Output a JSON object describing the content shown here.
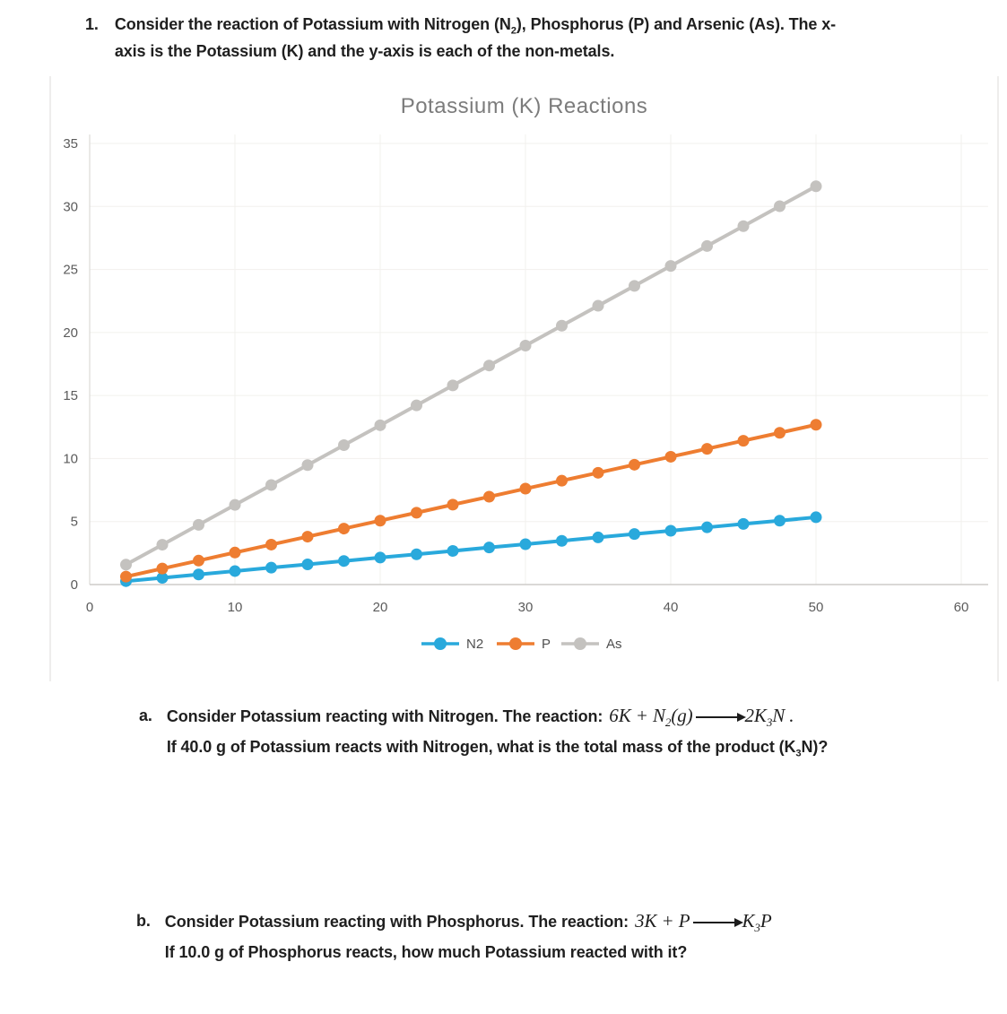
{
  "intro": {
    "number": "1.",
    "text": [
      {
        "t": "Consider the reaction of Potassium with Nitrogen (N"
      },
      {
        "t": "2",
        "sub": true
      },
      {
        "t": "), Phosphorus (P) and Arsenic (As). The x-"
      },
      {
        "br": true
      },
      {
        "t": "axis is the Potassium (K) and the y-axis is each of the non-metals."
      }
    ]
  },
  "chart_data": {
    "type": "line",
    "title": "Potassium (K) Reactions",
    "xlabel": "",
    "ylabel": "",
    "xlim": [
      0,
      60
    ],
    "ylim": [
      0,
      35
    ],
    "xticks": [
      0,
      10,
      20,
      30,
      40,
      50,
      60
    ],
    "yticks": [
      0,
      5,
      10,
      15,
      20,
      25,
      30,
      35
    ],
    "grid": true,
    "marker": "circle",
    "legend_position": "bottom",
    "x": [
      2.5,
      5,
      7.5,
      10,
      12.5,
      15,
      17.5,
      20,
      22.5,
      25,
      27.5,
      30,
      32.5,
      35,
      37.5,
      40,
      42.5,
      45,
      47.5,
      50
    ],
    "series": [
      {
        "name": "N2",
        "color": "#29A9DC",
        "values": [
          0.27,
          0.53,
          0.8,
          1.07,
          1.34,
          1.6,
          1.87,
          2.14,
          2.4,
          2.67,
          2.94,
          3.2,
          3.47,
          3.74,
          4.01,
          4.27,
          4.54,
          4.81,
          5.07,
          5.34
        ]
      },
      {
        "name": "P",
        "color": "#EE7D31",
        "values": [
          0.63,
          1.27,
          1.9,
          2.54,
          3.17,
          3.8,
          4.44,
          5.07,
          5.7,
          6.34,
          6.97,
          7.61,
          8.24,
          8.87,
          9.51,
          10.14,
          10.77,
          11.41,
          12.04,
          12.68
        ]
      },
      {
        "name": "As",
        "color": "#C4C2BF",
        "values": [
          1.58,
          3.16,
          4.74,
          6.32,
          7.9,
          9.48,
          11.06,
          12.64,
          14.22,
          15.8,
          17.38,
          18.96,
          20.54,
          22.12,
          23.7,
          25.28,
          26.86,
          28.44,
          30.02,
          31.6
        ]
      }
    ]
  },
  "questions": {
    "a": {
      "label": "a.",
      "reaction_prefix": "Consider Potassium reacting with Nitrogen. The reaction:",
      "formula": [
        {
          "t": "6K + N"
        },
        {
          "t": "2",
          "sub": true
        },
        {
          "t": "(g)"
        },
        {
          "arrow": true
        },
        {
          "t": "2K"
        },
        {
          "t": "3",
          "sub": true
        },
        {
          "t": "N ."
        }
      ],
      "line2": [
        {
          "t": "If 40.0 g of Potassium reacts with Nitrogen, what is the total mass of the product (K"
        },
        {
          "t": "3",
          "sub": true
        },
        {
          "t": "N)?"
        }
      ]
    },
    "b": {
      "label": "b.",
      "reaction_prefix": "Consider Potassium reacting with Phosphorus. The reaction:",
      "formula": [
        {
          "t": "3K + P"
        },
        {
          "arrow": true
        },
        {
          "t": "K"
        },
        {
          "t": "3",
          "sub": true
        },
        {
          "t": "P"
        }
      ],
      "line2": [
        {
          "t": "If 10.0 g of Phosphorus reacts, how much Potassium reacted with it?"
        }
      ]
    }
  }
}
